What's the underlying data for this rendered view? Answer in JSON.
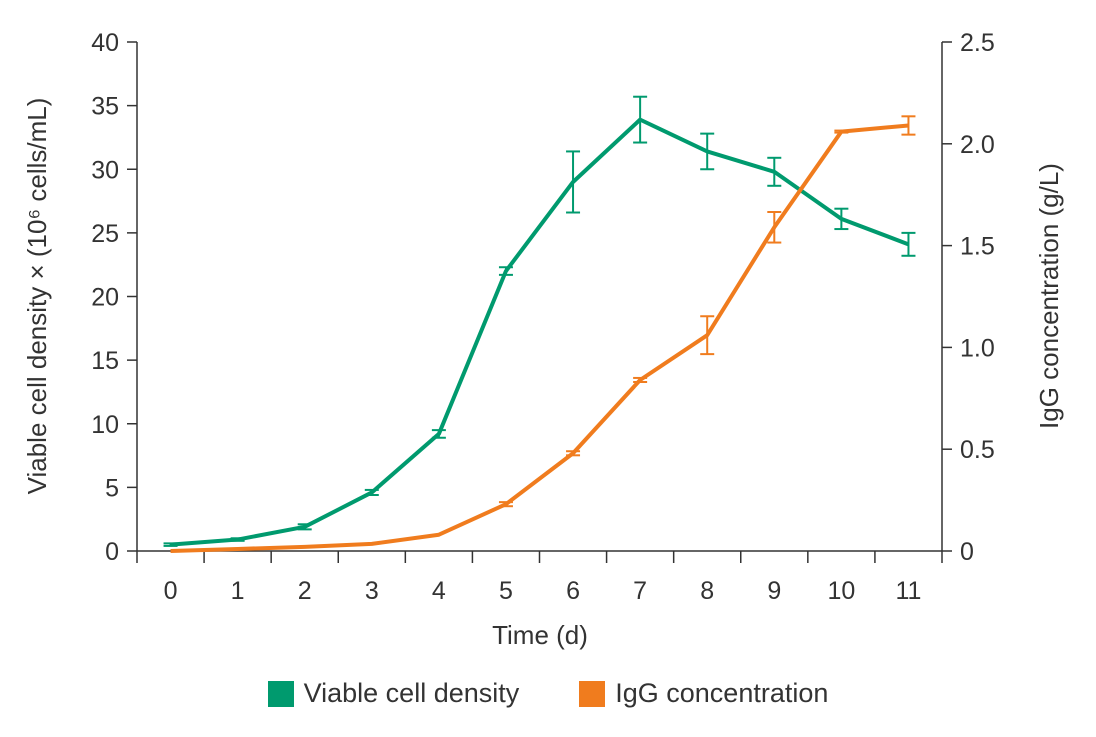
{
  "chart_data": {
    "type": "line",
    "x": [
      0,
      1,
      2,
      3,
      4,
      5,
      6,
      7,
      8,
      9,
      10,
      11
    ],
    "xlabel": "Time (d)",
    "ylabel_left": "Viable cell density × (10⁶ cells/mL)",
    "ylabel_right": "IgG concentration (g/L)",
    "ylim_left": [
      0,
      40
    ],
    "yticks_left": [
      "0",
      "5",
      "10",
      "15",
      "20",
      "25",
      "30",
      "35",
      "40"
    ],
    "ylim_right": [
      0,
      2.5
    ],
    "yticks_right": [
      "0",
      "0.5",
      "1.0",
      "1.5",
      "2.0",
      "2.5"
    ],
    "grid": false,
    "legend_position": "bottom",
    "series": [
      {
        "name": "Viable cell density",
        "axis": "left",
        "color": "#009a6e",
        "values": [
          0.5,
          0.9,
          1.9,
          4.6,
          9.2,
          22.0,
          29.0,
          33.9,
          31.4,
          29.8,
          26.1,
          24.1
        ],
        "errors": [
          0.1,
          0.1,
          0.2,
          0.2,
          0.3,
          0.3,
          2.4,
          1.8,
          1.4,
          1.1,
          0.8,
          0.9
        ]
      },
      {
        "name": "IgG concentration",
        "axis": "right",
        "color": "#f07c1e",
        "values": [
          0.0,
          0.01,
          0.02,
          0.035,
          0.08,
          0.23,
          0.48,
          0.84,
          1.06,
          1.59,
          2.06,
          2.09
        ],
        "errors": [
          0,
          0,
          0,
          0,
          0,
          0.01,
          0.01,
          0.01,
          0.093,
          0.075,
          0.005,
          0.045
        ]
      }
    ]
  }
}
